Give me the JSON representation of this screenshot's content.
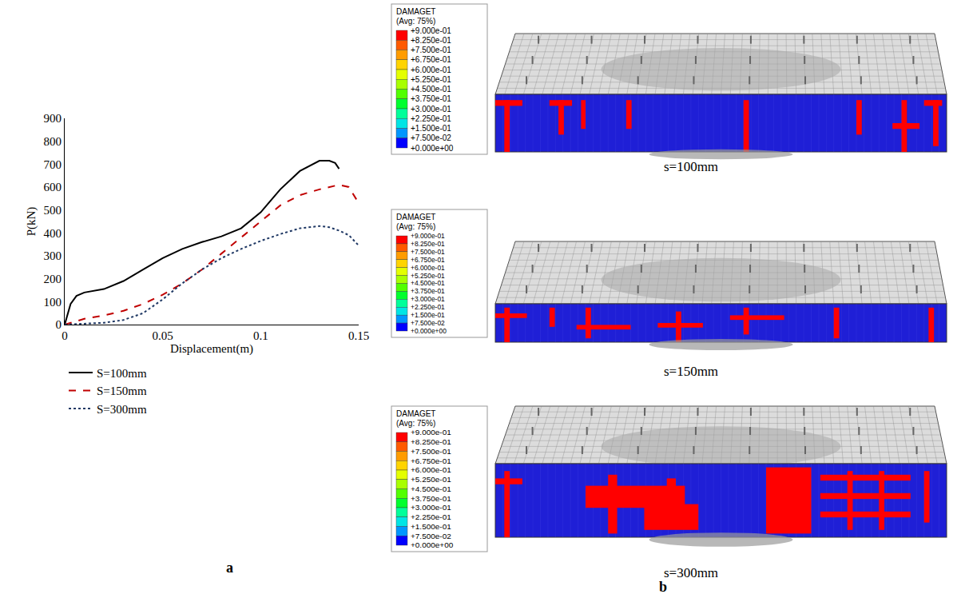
{
  "chart_data": {
    "type": "line",
    "panel_label": "a",
    "x_label": "Displacement(m)",
    "y_label": "P(kN)",
    "xlim": [
      0,
      0.15
    ],
    "ylim": [
      0,
      900
    ],
    "xticks": [
      0,
      0.05,
      0.1,
      0.15
    ],
    "yticks": [
      0,
      100,
      200,
      300,
      400,
      500,
      600,
      700,
      800,
      900
    ],
    "grid": false,
    "legend": "bottom",
    "series": [
      {
        "name": "S=100mm",
        "color": "#000000",
        "line_style": "solid",
        "x": [
          0,
          0.003,
          0.006,
          0.01,
          0.02,
          0.03,
          0.04,
          0.05,
          0.06,
          0.07,
          0.08,
          0.09,
          0.1,
          0.11,
          0.12,
          0.13,
          0.135,
          0.138,
          0.14
        ],
        "values": [
          0,
          90,
          125,
          140,
          155,
          190,
          240,
          290,
          330,
          360,
          385,
          420,
          490,
          590,
          670,
          715,
          715,
          705,
          680
        ]
      },
      {
        "name": "S=150mm",
        "color": "#c00000",
        "line_style": "dash",
        "x": [
          0,
          0.01,
          0.02,
          0.03,
          0.04,
          0.05,
          0.06,
          0.07,
          0.08,
          0.09,
          0.1,
          0.11,
          0.12,
          0.13,
          0.14,
          0.145,
          0.15
        ],
        "values": [
          0,
          25,
          40,
          60,
          90,
          130,
          180,
          240,
          310,
          380,
          450,
          520,
          565,
          590,
          610,
          600,
          530
        ]
      },
      {
        "name": "S=300mm",
        "color": "#1f3864",
        "line_style": "dot",
        "x": [
          0,
          0.01,
          0.02,
          0.03,
          0.04,
          0.05,
          0.06,
          0.07,
          0.08,
          0.09,
          0.1,
          0.11,
          0.12,
          0.13,
          0.135,
          0.14,
          0.145,
          0.15
        ],
        "values": [
          0,
          3,
          8,
          20,
          50,
          110,
          180,
          240,
          290,
          330,
          365,
          395,
          420,
          430,
          425,
          410,
          390,
          345
        ]
      }
    ]
  },
  "simulation_panel": {
    "panel_label": "b",
    "legend_title": "DAMAGET",
    "legend_subtitle": "(Avg: 75%)",
    "colorbar": {
      "range": [
        0,
        0.9
      ],
      "ticks": [
        {
          "value": 0.9,
          "label": "+9.000e-01"
        },
        {
          "value": 0.825,
          "label": "+8.250e-01"
        },
        {
          "value": 0.75,
          "label": "+7.500e-01"
        },
        {
          "value": 0.675,
          "label": "+6.750e-01"
        },
        {
          "value": 0.6,
          "label": "+6.000e-01"
        },
        {
          "value": 0.525,
          "label": "+5.250e-01"
        },
        {
          "value": 0.45,
          "label": "+4.500e-01"
        },
        {
          "value": 0.375,
          "label": "+3.750e-01"
        },
        {
          "value": 0.3,
          "label": "+3.000e-01"
        },
        {
          "value": 0.225,
          "label": "+2.250e-01"
        },
        {
          "value": 0.15,
          "label": "+1.500e-01"
        },
        {
          "value": 0.075,
          "label": "+7.500e-02"
        },
        {
          "value": 0,
          "label": "+0.000e+00"
        }
      ]
    },
    "views": [
      {
        "caption": "s=100mm"
      },
      {
        "caption": "s=150mm"
      },
      {
        "caption": "s=300mm"
      }
    ]
  }
}
